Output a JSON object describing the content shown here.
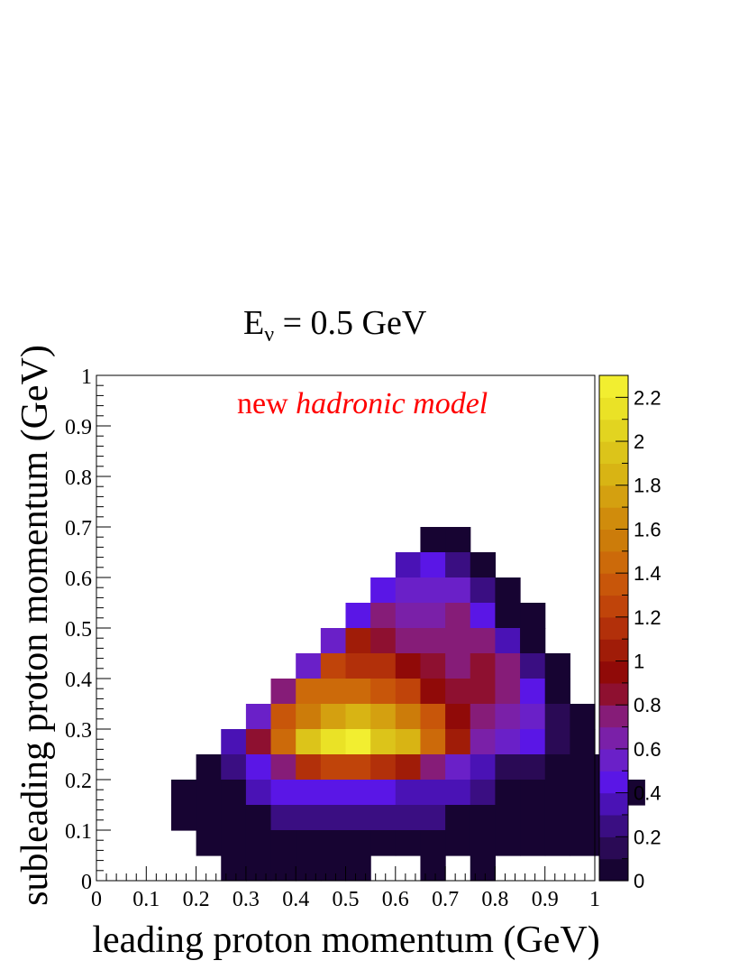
{
  "chart_data": {
    "type": "heatmap",
    "title": "E",
    "title_sub": "ν",
    "title_rest": " = 0.5 GeV",
    "annotation_plain": "new ",
    "annotation_italic": "hadronic model",
    "annotation_color": "#ff0000",
    "xlabel": "leading proton momentum (GeV)",
    "ylabel": "subleading proton momentum (GeV)",
    "xlim": [
      0,
      1
    ],
    "ylim": [
      0,
      1
    ],
    "bin_width": 0.05,
    "x_ticks": [
      "0",
      "0.1",
      "0.2",
      "0.3",
      "0.4",
      "0.5",
      "0.6",
      "0.7",
      "0.8",
      "0.9",
      "1"
    ],
    "y_ticks": [
      "0",
      "0.1",
      "0.2",
      "0.3",
      "0.4",
      "0.5",
      "0.6",
      "0.7",
      "0.8",
      "0.9",
      "1"
    ],
    "z_range": [
      0,
      2.3
    ],
    "colorbar_ticks": [
      "0",
      "0.2",
      "0.4",
      "0.6",
      "0.8",
      "1",
      "1.2",
      "1.4",
      "1.6",
      "1.8",
      "2",
      "2.2"
    ],
    "colorbar_tick_values": [
      0,
      0.2,
      0.4,
      0.6,
      0.8,
      1.0,
      1.2,
      1.4,
      1.6,
      1.8,
      2.0,
      2.2
    ],
    "legend": "none",
    "grid": false,
    "rows_note_order": "rows listed from y=0.65-0.70 (top) down to y=0.00-0.05 (bottom)",
    "rows": [
      {
        "y": 0.65,
        "x_start": 0.65,
        "values": [
          0.01,
          0.01
        ]
      },
      {
        "y": 0.6,
        "x_start": 0.6,
        "values": [
          0.38,
          0.45,
          0.26,
          0.03
        ]
      },
      {
        "y": 0.55,
        "x_start": 0.55,
        "values": [
          0.42,
          0.58,
          0.58,
          0.5,
          0.25,
          0.03
        ]
      },
      {
        "y": 0.5,
        "x_start": 0.5,
        "values": [
          0.48,
          0.72,
          0.62,
          0.62,
          0.7,
          0.45,
          0.03,
          0.03
        ]
      },
      {
        "y": 0.45,
        "x_start": 0.45,
        "values": [
          0.58,
          1.05,
          0.8,
          0.72,
          0.72,
          0.72,
          0.72,
          0.35,
          0.03
        ]
      },
      {
        "y": 0.4,
        "x_start": 0.4,
        "values": [
          0.55,
          1.25,
          1.15,
          1.1,
          0.95,
          0.8,
          0.7,
          0.8,
          0.7,
          0.2,
          0.02
        ]
      },
      {
        "y": 0.35,
        "x_start": 0.35,
        "values": [
          0.72,
          1.4,
          1.4,
          1.45,
          1.3,
          1.2,
          0.95,
          0.85,
          0.85,
          0.75,
          0.4,
          0.03
        ]
      },
      {
        "y": 0.3,
        "x_start": 0.3,
        "values": [
          0.5,
          1.3,
          1.55,
          1.7,
          1.8,
          1.7,
          1.55,
          1.3,
          0.9,
          0.7,
          0.62,
          0.5,
          0.18,
          0.03
        ]
      },
      {
        "y": 0.25,
        "x_start": 0.25,
        "values": [
          0.35,
          0.88,
          1.4,
          1.9,
          2.15,
          2.25,
          1.9,
          1.85,
          1.45,
          1.05,
          0.65,
          0.5,
          0.4,
          0.15,
          0.03
        ]
      },
      {
        "y": 0.2,
        "x_start": 0.2,
        "values": [
          0.03,
          0.2,
          0.48,
          0.78,
          1.15,
          1.2,
          1.2,
          1.15,
          1.05,
          0.75,
          0.5,
          0.38,
          0.18,
          0.18,
          0.03,
          0.03,
          0.03
        ]
      },
      {
        "y": 0.15,
        "x_start": 0.15,
        "values": [
          0.03,
          0.03,
          0.03,
          0.32,
          0.4,
          0.45,
          0.45,
          0.45,
          0.45,
          0.38,
          0.32,
          0.32,
          0.2,
          0.03,
          0.03,
          0.03,
          0.03,
          0.03,
          0.03
        ]
      },
      {
        "y": 0.1,
        "x_start": 0.15,
        "values": [
          0.03,
          0.03,
          0.03,
          0.03,
          0.2,
          0.22,
          0.22,
          0.22,
          0.2,
          0.2,
          0.2,
          0.03,
          0.03,
          0.03,
          0.03,
          0.03,
          0.03,
          0.03
        ]
      },
      {
        "y": 0.05,
        "x_start": 0.2,
        "values": [
          0.03,
          0.03,
          0.03,
          0.03,
          0.03,
          0.03,
          0.03,
          0.03,
          0.03,
          0.03,
          0.03,
          0.03,
          0.03,
          0.03,
          0.03,
          0.03,
          0.03
        ]
      },
      {
        "y": 0.0,
        "x_start": 0.25,
        "values": [
          0.02,
          0.02,
          0.02,
          0.02,
          0.02,
          0.02,
          null,
          null,
          0.02,
          null,
          0.02
        ]
      }
    ],
    "palette": [
      "#170432",
      "#2a0a55",
      "#3a0e82",
      "#4a12b5",
      "#5a16e6",
      "#6a20c8",
      "#7a20a8",
      "#861c78",
      "#8e1030",
      "#900a08",
      "#a01c08",
      "#b2300a",
      "#c0440a",
      "#c8560a",
      "#cc6a0a",
      "#cc7c0a",
      "#d08c0c",
      "#d4a010",
      "#d8b414",
      "#dcc41a",
      "#e2d420",
      "#eae226",
      "#f2ee30"
    ]
  }
}
